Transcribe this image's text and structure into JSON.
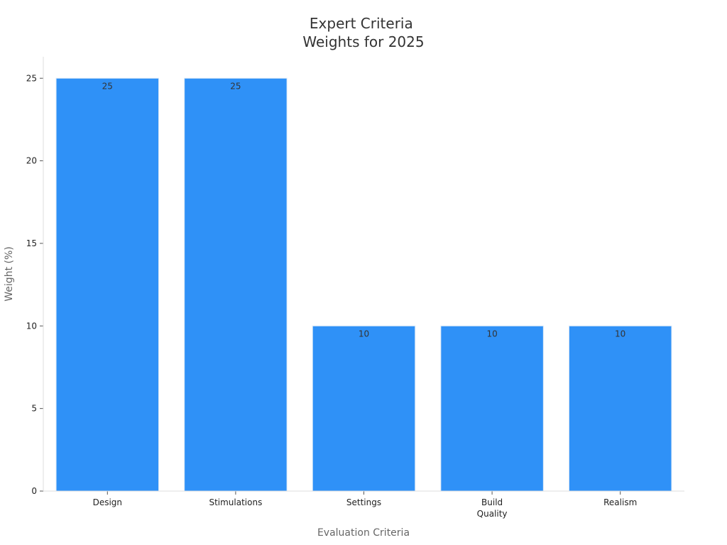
{
  "chart_data": {
    "type": "bar",
    "title": [
      "Expert Criteria",
      "Weights for 2025"
    ],
    "xlabel": "Evaluation Criteria",
    "ylabel": "Weight (%)",
    "categories": [
      [
        "Design"
      ],
      [
        "Stimulations"
      ],
      [
        "Settings"
      ],
      [
        "Build",
        "Quality"
      ],
      [
        "Realism"
      ]
    ],
    "values": [
      25,
      25,
      10,
      10,
      10
    ],
    "data_labels": [
      "25",
      "25",
      "10",
      "10",
      "10"
    ],
    "ylim": [
      0,
      26.3
    ],
    "yticks": [
      0,
      5,
      10,
      15,
      20,
      25
    ],
    "ytick_labels": [
      "0",
      "5",
      "10",
      "15",
      "20",
      "25"
    ],
    "grid": false,
    "legend": "none",
    "colors": {
      "bar": "#2f91f7",
      "bar_edge": "#dbe9f7"
    }
  }
}
